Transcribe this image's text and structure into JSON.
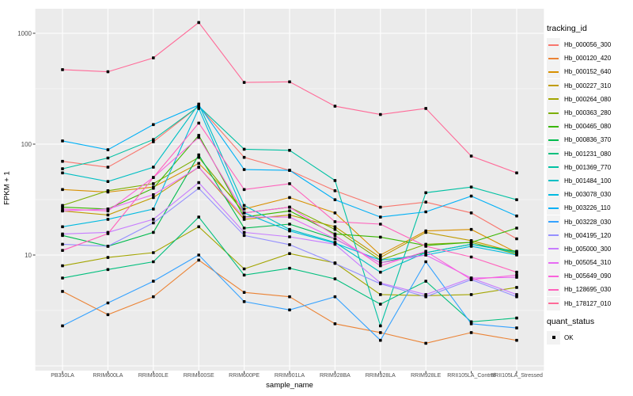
{
  "legend": {
    "title": "tracking_id"
  },
  "quant_legend": {
    "title": "quant_status",
    "items": [
      {
        "label": "OK"
      }
    ]
  },
  "chart_data": {
    "type": "line",
    "title": "",
    "xlabel": "sample_name",
    "ylabel": "FPKM + 1",
    "yscale": "log10",
    "ylim": [
      1.4,
      1400
    ],
    "grid": "white major + minor on grey panel",
    "legend_position": "right",
    "panel_bg": "#EBEBEB",
    "grid_color": "#FFFFFF",
    "point_marker": {
      "shape": "square",
      "color": "#000000",
      "legend_label": "OK"
    },
    "y_ticks": [
      {
        "label": "1000",
        "value": 1000
      },
      {
        "label": "100",
        "value": 100
      },
      {
        "label": "10",
        "value": 10
      }
    ],
    "y_major_grid": [
      1,
      10,
      100,
      1000
    ],
    "y_minor_grid": [
      3.1623,
      31.623,
      316.23
    ],
    "categories": [
      "PB350LA",
      "RRIM600LA",
      "RRIM600LE",
      "RRIM600SE",
      "RRIM600PE",
      "RRIM901LA",
      "RRIM928BA",
      "RRIM928LA",
      "RRIM928LE",
      "RRII105LA_Control",
      "RRII105LA_Stressed"
    ],
    "series": [
      {
        "name": "Hb_000056_300",
        "color": "#F8766D",
        "values": [
          70,
          62,
          105,
          220,
          76,
          58,
          38,
          27,
          30,
          24,
          14
        ]
      },
      {
        "name": "Hb_000120_420",
        "color": "#EB8335",
        "values": [
          4.7,
          2.9,
          4.2,
          9,
          4.6,
          4.2,
          2.4,
          2.0,
          1.6,
          2.0,
          1.7
        ]
      },
      {
        "name": "Hb_000152_640",
        "color": "#D89000",
        "values": [
          39,
          37,
          41,
          67,
          26,
          33,
          24,
          10,
          16.5,
          17,
          10.5
        ]
      },
      {
        "name": "Hb_000227_310",
        "color": "#C09B00",
        "values": [
          25,
          23,
          33,
          62,
          21,
          23,
          18,
          9.5,
          16,
          13.5,
          10.5
        ]
      },
      {
        "name": "Hb_000264_080",
        "color": "#A3A500",
        "values": [
          8,
          9.5,
          10.5,
          18,
          7.5,
          10.3,
          8.5,
          4.4,
          4.3,
          4.4,
          5.1
        ]
      },
      {
        "name": "Hb_000363_280",
        "color": "#7CAE00",
        "values": [
          28,
          38,
          44,
          76,
          24,
          27,
          17,
          9,
          12.5,
          13,
          10.2
        ]
      },
      {
        "name": "Hb_000465_080",
        "color": "#39B600",
        "values": [
          27,
          26,
          40,
          120,
          22,
          25,
          15.5,
          14.5,
          12.2,
          13,
          17.5
        ]
      },
      {
        "name": "Hb_000836_370",
        "color": "#00BB4E",
        "values": [
          15,
          12,
          16,
          80,
          17.5,
          19,
          14,
          8.5,
          10.5,
          12.5,
          10.8
        ]
      },
      {
        "name": "Hb_001231_080",
        "color": "#00BF7D",
        "values": [
          6.2,
          7.4,
          8.7,
          22,
          6.6,
          7.6,
          6.1,
          3.6,
          5.8,
          2.5,
          2.7
        ]
      },
      {
        "name": "Hb_001369_770",
        "color": "#00C1A3",
        "values": [
          60,
          75,
          110,
          220,
          90,
          88,
          47,
          2.3,
          36.5,
          41,
          31.5
        ]
      },
      {
        "name": "Hb_001484_100",
        "color": "#00BFC4",
        "values": [
          55,
          46,
          62,
          230,
          28,
          17,
          13,
          7,
          10.5,
          12.5,
          10.5
        ]
      },
      {
        "name": "Hb_003078_030",
        "color": "#00BAE0",
        "values": [
          18,
          21,
          26,
          210,
          24,
          16.5,
          12.8,
          9,
          10,
          12,
          10
        ]
      },
      {
        "name": "Hb_003226_110",
        "color": "#00B0F6",
        "values": [
          107,
          89,
          150,
          225,
          59,
          58,
          31.5,
          22,
          24.5,
          34,
          22.5
        ]
      },
      {
        "name": "Hb_003228_030",
        "color": "#35A2FF",
        "values": [
          2.3,
          3.7,
          5.8,
          10,
          3.8,
          3.2,
          4.2,
          1.7,
          8.7,
          2.4,
          2.2
        ]
      },
      {
        "name": "Hb_004195_120",
        "color": "#9590FF",
        "values": [
          12.5,
          12,
          19.5,
          40,
          15,
          12.4,
          8.4,
          5.5,
          4.2,
          6.0,
          4.2
        ]
      },
      {
        "name": "Hb_005000_300",
        "color": "#C77CFF",
        "values": [
          15.5,
          16,
          21,
          45,
          16,
          14.6,
          12.5,
          5.6,
          4.4,
          6.2,
          4.4
        ]
      },
      {
        "name": "Hb_005054_310",
        "color": "#E76BF3",
        "values": [
          25,
          26,
          35,
          62,
          22,
          22,
          14,
          8.5,
          10,
          6.2,
          6.3
        ]
      },
      {
        "name": "Hb_005649_090",
        "color": "#FA62DB",
        "values": [
          26,
          25,
          50,
          115,
          24,
          27,
          15,
          8,
          10.8,
          6.0,
          6.6
        ]
      },
      {
        "name": "Hb_128695_030",
        "color": "#FF62BC",
        "values": [
          11,
          15.6,
          50,
          155,
          39,
          44,
          20,
          19,
          12,
          9.6,
          7
        ]
      },
      {
        "name": "Hb_178127_010",
        "color": "#FF6A98",
        "values": [
          470,
          450,
          600,
          1250,
          360,
          365,
          220,
          185,
          210,
          78,
          55
        ]
      }
    ]
  }
}
